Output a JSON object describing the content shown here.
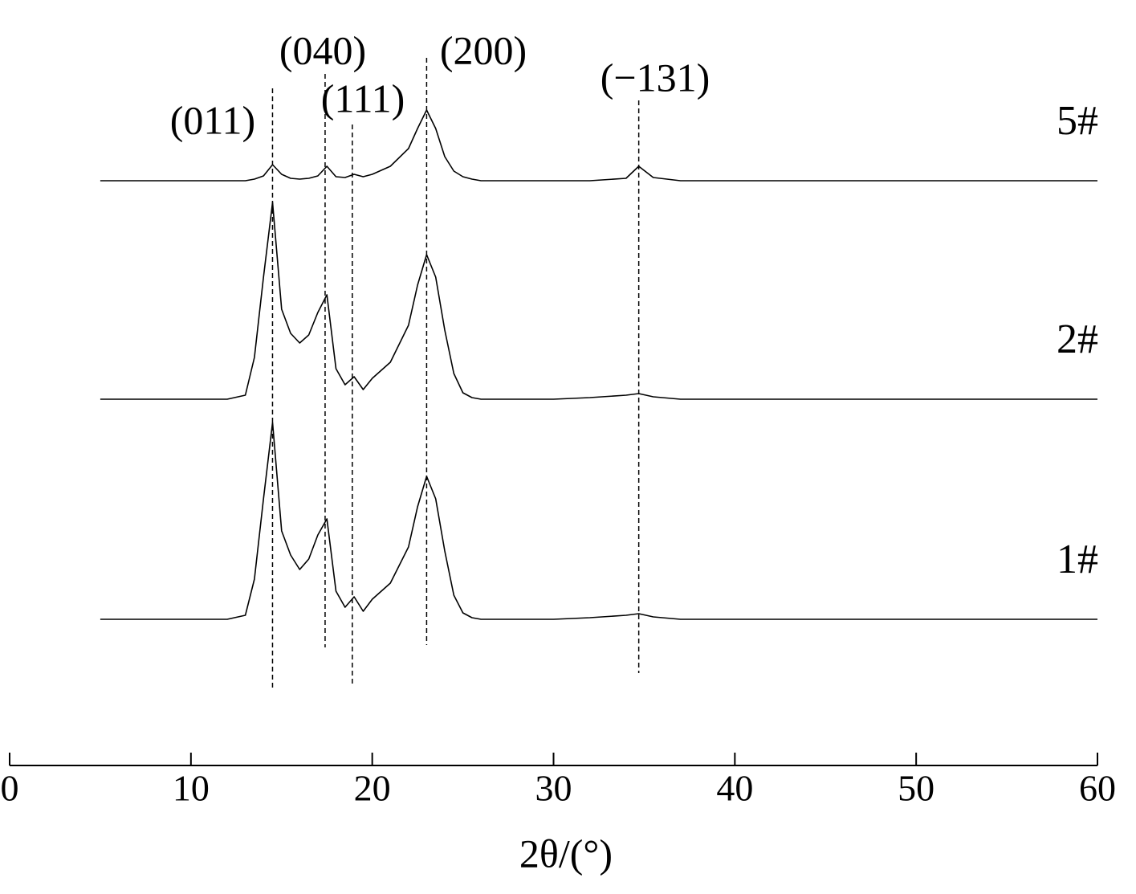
{
  "chart_data": {
    "type": "line",
    "x_label": "2θ/(°)",
    "xlim": [
      0,
      60
    ],
    "xticks": [
      0,
      10,
      20,
      30,
      40,
      50,
      60
    ],
    "x": [
      5,
      6,
      7,
      8,
      9,
      10,
      11,
      12,
      13,
      13.5,
      14,
      14.5,
      15,
      15.5,
      16,
      16.5,
      17,
      17.5,
      18,
      18.5,
      19,
      19.5,
      20,
      21,
      22,
      22.5,
      23,
      23.5,
      24,
      24.5,
      25,
      25.5,
      26,
      28,
      30,
      32,
      34,
      34.7,
      35.5,
      37,
      40,
      45,
      50,
      55,
      60
    ],
    "series": [
      {
        "name": "5#",
        "color": "#000000",
        "values": [
          0,
          0,
          0,
          0,
          0,
          0,
          0,
          0,
          0,
          2,
          6,
          20,
          8,
          3,
          2,
          3,
          6,
          18,
          5,
          4,
          8,
          5,
          8,
          18,
          40,
          65,
          88,
          65,
          30,
          12,
          5,
          2,
          0,
          0,
          0,
          0,
          3,
          18,
          4,
          0,
          0,
          0,
          0,
          0,
          0
        ]
      },
      {
        "name": "2#",
        "color": "#000000",
        "values": [
          0,
          0,
          0,
          0,
          0,
          0,
          0,
          0,
          5,
          52,
          152,
          245,
          112,
          82,
          70,
          80,
          108,
          130,
          38,
          18,
          28,
          12,
          26,
          46,
          92,
          142,
          180,
          152,
          86,
          32,
          8,
          2,
          0,
          0,
          0,
          2,
          5,
          7,
          3,
          0,
          0,
          0,
          0,
          0,
          0
        ]
      },
      {
        "name": "1#",
        "color": "#000000",
        "values": [
          0,
          0,
          0,
          0,
          0,
          0,
          0,
          0,
          5,
          50,
          150,
          245,
          110,
          80,
          62,
          75,
          105,
          125,
          35,
          15,
          28,
          10,
          25,
          45,
          90,
          140,
          178,
          150,
          85,
          30,
          8,
          2,
          0,
          0,
          0,
          2,
          5,
          7,
          3,
          0,
          0,
          0,
          0,
          0,
          0
        ]
      }
    ],
    "annotations": [
      {
        "text": "(011)",
        "x": 14.5
      },
      {
        "text": "(040)",
        "x": 17.4
      },
      {
        "text": "(111)",
        "x": 18.9
      },
      {
        "text": "(200)",
        "x": 23
      },
      {
        "text": "(−131)",
        "x": 34.7
      }
    ]
  }
}
